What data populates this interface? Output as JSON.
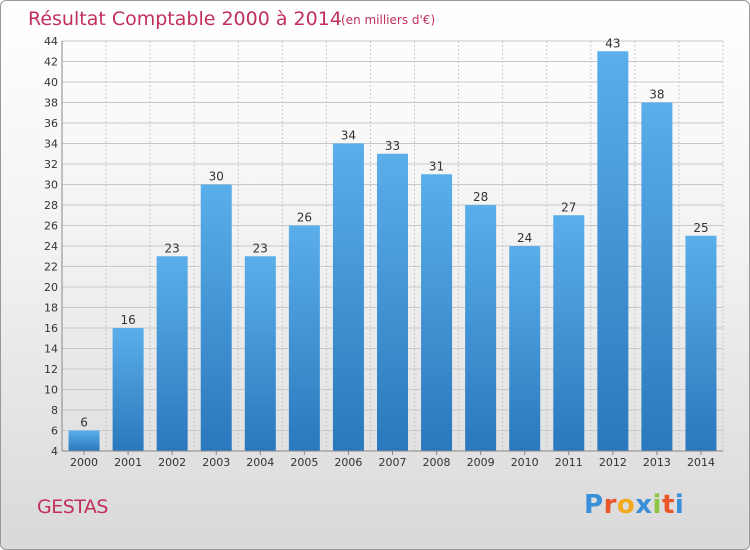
{
  "title": "Résultat Comptable 2000 à 2014",
  "subtitle": "(en milliers d'€)",
  "place": "GESTAS",
  "logo": {
    "text": "Proxiti",
    "colors": [
      "#3a8fd9",
      "#e8562a",
      "#f2a91c",
      "#3a8fd9",
      "#8cc63e",
      "#e8562a",
      "#3a8fd9"
    ]
  },
  "colors": {
    "bar_top": "#5aaeea",
    "bar_bottom": "#2a78bd",
    "grid": "#c8c8c8",
    "text": "#333333",
    "accent": "#c0305a"
  },
  "chart_data": {
    "type": "bar",
    "title": "Résultat Comptable 2000 à 2014",
    "subtitle": "(en milliers d'€)",
    "xlabel": "",
    "ylabel": "",
    "categories": [
      "2000",
      "2001",
      "2002",
      "2003",
      "2004",
      "2005",
      "2006",
      "2007",
      "2008",
      "2009",
      "2010",
      "2011",
      "2012",
      "2013",
      "2014"
    ],
    "values": [
      6,
      16,
      23,
      30,
      23,
      26,
      34,
      33,
      31,
      28,
      24,
      27,
      43,
      38,
      25
    ],
    "ylim": [
      4,
      44
    ],
    "ytick_step": 2,
    "grid": true
  }
}
